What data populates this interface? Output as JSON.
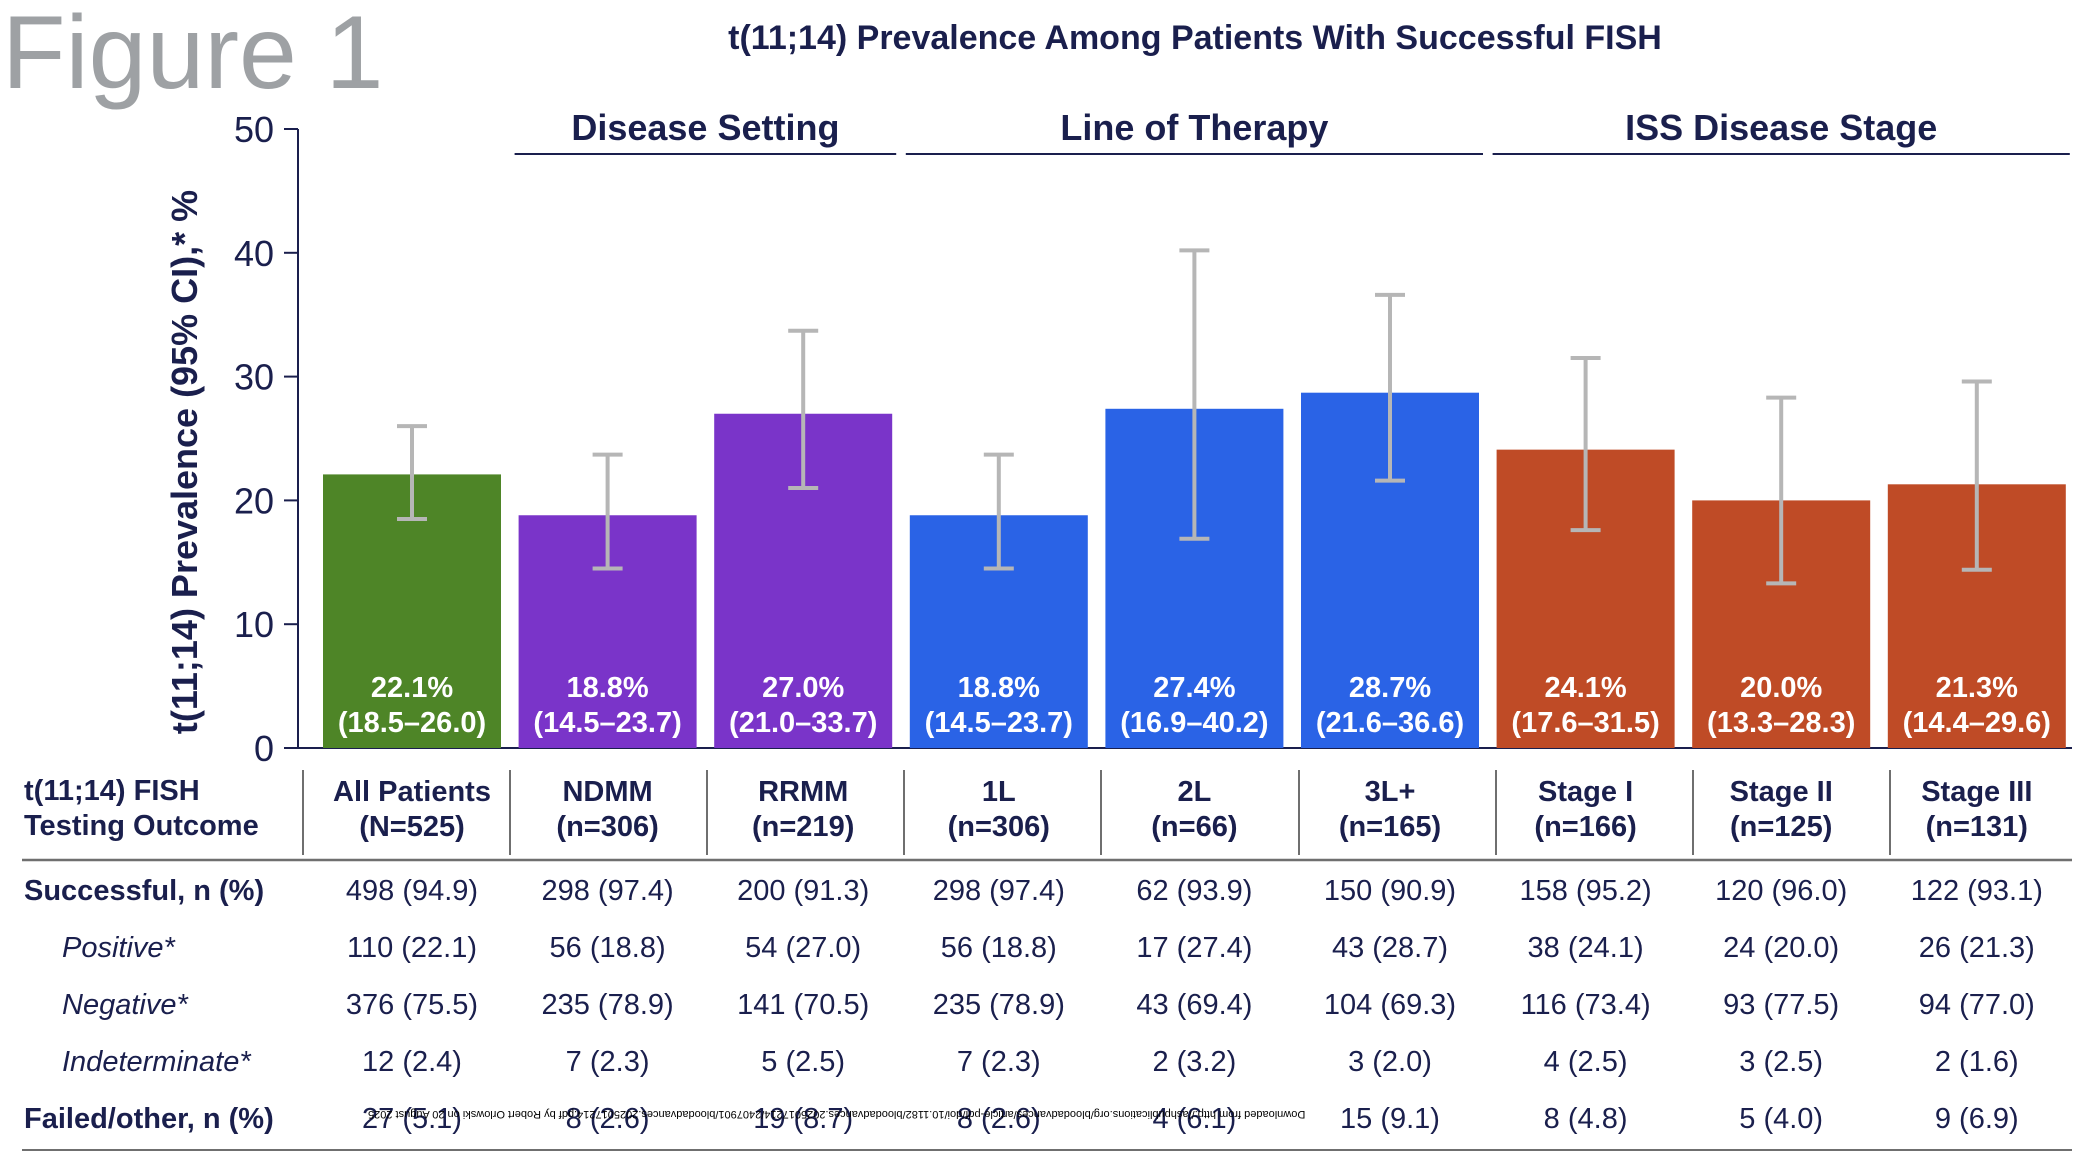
{
  "figure_label": "Figure 1",
  "chart_data": {
    "type": "bar",
    "title": "t(11;14) Prevalence Among Patients With Successful FISH",
    "ylabel": "t(11;14) Prevalence (95% CI),* %",
    "xlabel": "",
    "ylim": [
      0,
      50
    ],
    "yticks": [
      0,
      10,
      20,
      30,
      40,
      50
    ],
    "grid": false,
    "groups": [
      {
        "label": "",
        "categories": [
          "All Patients"
        ]
      },
      {
        "label": "Disease Setting",
        "categories": [
          "NDMM",
          "RRMM"
        ]
      },
      {
        "label": "Line of Therapy",
        "categories": [
          "1L",
          "2L",
          "3L+"
        ]
      },
      {
        "label": "ISS Disease Stage",
        "categories": [
          "Stage I",
          "Stage II",
          "Stage III"
        ]
      }
    ],
    "categories": [
      "All Patients",
      "NDMM",
      "RRMM",
      "1L",
      "2L",
      "3L+",
      "Stage I",
      "Stage II",
      "Stage III"
    ],
    "values": [
      22.1,
      18.8,
      27.0,
      18.8,
      27.4,
      28.7,
      24.1,
      20.0,
      21.3
    ],
    "ci_low": [
      18.5,
      14.5,
      21.0,
      14.5,
      16.9,
      21.6,
      17.6,
      13.3,
      14.4
    ],
    "ci_high": [
      26.0,
      23.7,
      33.7,
      23.7,
      40.2,
      36.6,
      31.5,
      28.3,
      29.6
    ],
    "bar_labels": [
      "22.1%",
      "18.8%",
      "27.0%",
      "18.8%",
      "27.4%",
      "28.7%",
      "24.1%",
      "20.0%",
      "21.3%"
    ],
    "ci_labels": [
      "(18.5–26.0)",
      "(14.5–23.7)",
      "(21.0–33.7)",
      "(14.5–23.7)",
      "(16.9–40.2)",
      "(21.6–36.6)",
      "(17.6–31.5)",
      "(13.3–28.3)",
      "(14.4–29.6)"
    ],
    "colors": [
      "#4e8527",
      "#7a34c9",
      "#7a34c9",
      "#2a63e6",
      "#2a63e6",
      "#2a63e6",
      "#bf4b26",
      "#bf4b26",
      "#bf4b26"
    ],
    "errorbar_color": "#b6b6b6",
    "text_color": "#1a1f4d"
  },
  "table": {
    "header_label_line1": "t(11;14) FISH",
    "header_label_line2": "Testing Outcome",
    "columns": [
      {
        "name": "All Patients",
        "n": "(N=525)"
      },
      {
        "name": "NDMM",
        "n": "(n=306)"
      },
      {
        "name": "RRMM",
        "n": "(n=219)"
      },
      {
        "name": "1L",
        "n": "(n=306)"
      },
      {
        "name": "2L",
        "n": "(n=66)"
      },
      {
        "name": "3L+",
        "n": "(n=165)"
      },
      {
        "name": "Stage I",
        "n": "(n=166)"
      },
      {
        "name": "Stage II",
        "n": "(n=125)"
      },
      {
        "name": "Stage III",
        "n": "(n=131)"
      }
    ],
    "rows": [
      {
        "label": "Successful, n (%)",
        "sub": false,
        "values": [
          "498 (94.9)",
          "298 (97.4)",
          "200 (91.3)",
          "298 (97.4)",
          "62 (93.9)",
          "150 (90.9)",
          "158 (95.2)",
          "120 (96.0)",
          "122 (93.1)"
        ]
      },
      {
        "label": "Positive*",
        "sub": true,
        "values": [
          "110 (22.1)",
          "56 (18.8)",
          "54 (27.0)",
          "56 (18.8)",
          "17 (27.4)",
          "43 (28.7)",
          "38 (24.1)",
          "24 (20.0)",
          "26 (21.3)"
        ]
      },
      {
        "label": "Negative*",
        "sub": true,
        "values": [
          "376 (75.5)",
          "235 (78.9)",
          "141 (70.5)",
          "235 (78.9)",
          "43 (69.4)",
          "104 (69.3)",
          "116 (73.4)",
          "93 (77.5)",
          "94 (77.0)"
        ]
      },
      {
        "label": "Indeterminate*",
        "sub": true,
        "values": [
          "12 (2.4)",
          "7 (2.3)",
          "5 (2.5)",
          "7 (2.3)",
          "2 (3.2)",
          "3 (2.0)",
          "4 (2.5)",
          "3 (2.5)",
          "2 (1.6)"
        ]
      },
      {
        "label": "Failed/other, n (%)",
        "sub": false,
        "values": [
          "27 (5.1)",
          "8 (2.6)",
          "19 (8.7)",
          "8 (2.6)",
          "4 (6.1)",
          "15 (9.1)",
          "8 (4.8)",
          "5 (4.0)",
          "9 (6.9)"
        ]
      }
    ]
  },
  "watermark": "Downloaded from http://ashpublications.org/bloodadvances/article-pdf/doi/10.1182/bloodadvances.2025017214/2407901/bloodadvances.2025017214.pdf by Robert Orlowski on 20 August 2025"
}
